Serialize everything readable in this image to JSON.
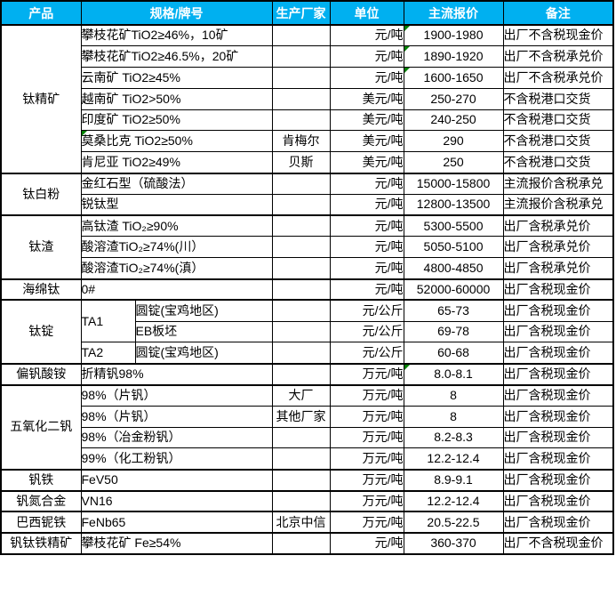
{
  "table": {
    "accent_color": "#00B0F0",
    "marker_color": "#008000",
    "header": {
      "product": "产品",
      "spec": "规格/牌号",
      "manufacturer": "生产厂家",
      "unit": "单位",
      "price": "主流报价",
      "note": "备注"
    },
    "groups": [
      {
        "product": "钛精矿",
        "rows": [
          {
            "spec": "攀枝花矿TiO2≥46%，10矿",
            "manufacturer": "",
            "unit": "元/吨",
            "price": "1900-1980",
            "note": "出厂不含税现金价",
            "price_marker": true
          },
          {
            "spec": "攀枝花矿TiO2≥46.5%，20矿",
            "manufacturer": "",
            "unit": "元/吨",
            "price": "1890-1920",
            "note": "出厂不含税承兑价",
            "price_marker": true
          },
          {
            "spec": "云南矿 TiO2≥45%",
            "manufacturer": "",
            "unit": "元/吨",
            "price": "1600-1650",
            "note": "出厂不含税承兑价",
            "price_marker": true
          },
          {
            "spec": "越南矿 TiO2>50%",
            "manufacturer": "",
            "unit": "美元/吨",
            "price": "250-270",
            "note": "不含税港口交货"
          },
          {
            "spec": "印度矿 TiO2≥50%",
            "manufacturer": "",
            "unit": "美元/吨",
            "price": "240-250",
            "note": "不含税港口交货"
          },
          {
            "spec": "莫桑比克 TiO2≥50%",
            "manufacturer": "肯梅尔",
            "unit": "美元/吨",
            "price": "290",
            "note": "不含税港口交货",
            "spec_marker": true
          },
          {
            "spec": "肯尼亚 TiO2≥49%",
            "manufacturer": "贝斯",
            "unit": "美元/吨",
            "price": "250",
            "note": "不含税港口交货"
          }
        ]
      },
      {
        "product": "钛白粉",
        "rows": [
          {
            "spec": "金红石型（硫酸法）",
            "manufacturer": "",
            "unit": "元/吨",
            "price": "15000-15800",
            "note": "主流报价含税承兑"
          },
          {
            "spec": "锐钛型",
            "manufacturer": "",
            "unit": "元/吨",
            "price": "12800-13500",
            "note": "主流报价含税承兑"
          }
        ]
      },
      {
        "product": "钛渣",
        "rows": [
          {
            "spec": "高钛渣 TiO₂≥90%",
            "manufacturer": "",
            "unit": "元/吨",
            "price": "5300-5500",
            "note": "出厂含税承兑价"
          },
          {
            "spec": "酸溶渣TiO₂≥74%(川）",
            "manufacturer": "",
            "unit": "元/吨",
            "price": "5050-5100",
            "note": "出厂含税承兑价"
          },
          {
            "spec": "酸溶渣TiO₂≥74%(滇）",
            "manufacturer": "",
            "unit": "元/吨",
            "price": "4800-4850",
            "note": "出厂含税承兑价"
          }
        ]
      },
      {
        "product": "海绵钛",
        "rows": [
          {
            "spec": "0#",
            "manufacturer": "",
            "unit": "元/吨",
            "price": "52000-60000",
            "note": "出厂含税现金价"
          }
        ]
      },
      {
        "product": "钛锭",
        "rows": [
          {
            "grade": "TA1",
            "grade_rowspan": 2,
            "type": "圆锭(宝鸡地区)",
            "manufacturer": "",
            "unit": "元/公斤",
            "price": "65-73",
            "note": "出厂含税现金价"
          },
          {
            "type": "EB板坯",
            "manufacturer": "",
            "unit": "元/公斤",
            "price": "69-78",
            "note": "出厂含税现金价"
          },
          {
            "grade": "TA2",
            "grade_rowspan": 1,
            "type": "圆锭(宝鸡地区)",
            "manufacturer": "",
            "unit": "元/公斤",
            "price": "60-68",
            "note": "出厂含税现金价"
          }
        ]
      },
      {
        "product": "偏钒酸铵",
        "rows": [
          {
            "spec": "折精钒98%",
            "manufacturer": "",
            "unit": "万元/吨",
            "price": "8.0-8.1",
            "note": "出厂含税现金价",
            "price_marker": true
          }
        ]
      },
      {
        "product": "五氧化二钒",
        "rows": [
          {
            "spec": "98%（片钒）",
            "manufacturer": "大厂",
            "unit": "万元/吨",
            "price": "8",
            "note": "出厂含税现金价"
          },
          {
            "spec": "98%（片钒）",
            "manufacturer": "其他厂家",
            "unit": "万元/吨",
            "price": "8",
            "note": "出厂含税现金价"
          },
          {
            "spec": "98%（冶金粉钒）",
            "manufacturer": "",
            "unit": "万元/吨",
            "price": "8.2-8.3",
            "note": "出厂含税现金价"
          },
          {
            "spec": "99%（化工粉钒）",
            "manufacturer": "",
            "unit": "万元/吨",
            "price": "12.2-12.4",
            "note": "出厂含税现金价"
          }
        ]
      },
      {
        "product": "钒铁",
        "rows": [
          {
            "spec": "FeV50",
            "manufacturer": "",
            "unit": "万元/吨",
            "price": "8.9-9.1",
            "note": "出厂含税现金价"
          }
        ]
      },
      {
        "product": "钒氮合金",
        "rows": [
          {
            "spec": "VN16",
            "manufacturer": "",
            "unit": "万元/吨",
            "price": "12.2-12.4",
            "note": "出厂含税现金价"
          }
        ]
      },
      {
        "product": "巴西铌铁",
        "rows": [
          {
            "spec": "FeNb65",
            "manufacturer": "北京中信",
            "unit": "万元/吨",
            "price": "20.5-22.5",
            "note": "出厂含税现金价"
          }
        ]
      },
      {
        "product": "钒钛铁精矿",
        "rows": [
          {
            "spec": "攀枝花矿 Fe≥54%",
            "manufacturer": "",
            "unit": "元/吨",
            "price": "360-370",
            "note": "出厂不含税现金价"
          }
        ]
      }
    ]
  }
}
